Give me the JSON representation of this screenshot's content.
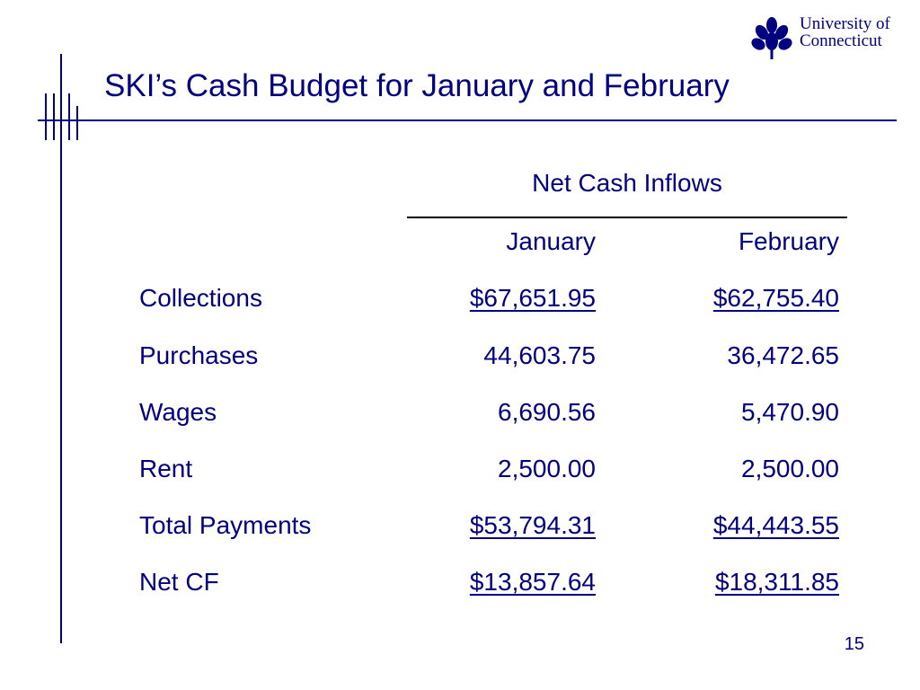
{
  "slide": {
    "title": "SKI’s Cash Budget for January and February",
    "page_number": "15",
    "logo": {
      "icon": "oak-leaf-icon",
      "line1": "University of",
      "line2": "Connecticut"
    }
  },
  "table": {
    "group_header": "Net Cash Inflows",
    "columns": [
      "January",
      "February"
    ],
    "rows": [
      {
        "label": "Collections",
        "jan": "$67,651.95",
        "feb": "$62,755.40",
        "underline": true
      },
      {
        "label": "Purchases",
        "jan": "44,603.75",
        "feb": "36,472.65",
        "underline": false
      },
      {
        "label": "Wages",
        "jan": "6,690.56",
        "feb": "5,470.90",
        "underline": false
      },
      {
        "label": "Rent",
        "jan": "2,500.00",
        "feb": "2,500.00",
        "underline": false
      },
      {
        "label": "Total Payments",
        "jan": "$53,794.31",
        "feb": "$44,443.55",
        "underline": true
      },
      {
        "label": "Net CF",
        "jan": "$13,857.64",
        "feb": "$18,311.85",
        "underline": true
      }
    ]
  },
  "colors": {
    "text": "#000080",
    "rule": "#000000",
    "background": "#ffffff"
  }
}
